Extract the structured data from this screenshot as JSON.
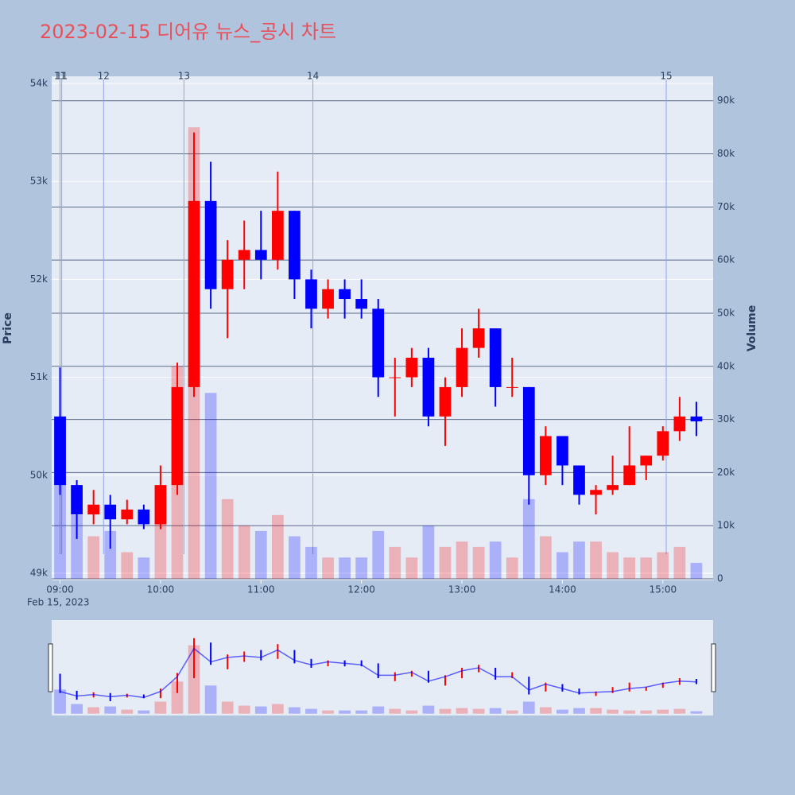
{
  "chart_data": {
    "type": "candlestick",
    "title": "2023-02-15 디어유 뉴스_공시 차트",
    "y_title": "Price",
    "y2_title": "Volume",
    "x_date_label": "Feb 15, 2023",
    "increasing_color": "#ff0000",
    "decreasing_color": "#0000ff",
    "x": [
      "09:00",
      "09:10",
      "09:20",
      "09:30",
      "09:40",
      "09:50",
      "10:00",
      "10:10",
      "10:20",
      "10:30",
      "10:40",
      "10:50",
      "11:00",
      "11:10",
      "11:20",
      "11:30",
      "11:40",
      "11:50",
      "12:00",
      "12:10",
      "12:20",
      "12:30",
      "12:40",
      "12:50",
      "13:00",
      "13:10",
      "13:20",
      "13:30",
      "13:40",
      "13:50",
      "14:00",
      "14:10",
      "14:20",
      "14:30",
      "14:40",
      "14:50",
      "15:00",
      "15:10",
      "15:20"
    ],
    "open": [
      50600,
      49900,
      49600,
      49700,
      49550,
      49650,
      49500,
      49900,
      50900,
      52800,
      51900,
      52200,
      52300,
      52200,
      52700,
      52000,
      51700,
      51900,
      51800,
      51700,
      51000,
      51000,
      51200,
      50600,
      50900,
      51300,
      51500,
      50900,
      50900,
      50000,
      50400,
      50100,
      49800,
      49850,
      49900,
      50100,
      50200,
      50450,
      50600
    ],
    "high": [
      51100,
      49950,
      49850,
      49800,
      49750,
      49700,
      50100,
      51150,
      53500,
      53200,
      52400,
      52600,
      52700,
      53100,
      52700,
      52100,
      52000,
      52000,
      52000,
      51800,
      51200,
      51300,
      51300,
      51000,
      51500,
      51700,
      51500,
      51200,
      50900,
      50500,
      50400,
      50100,
      49900,
      50200,
      50500,
      50200,
      50500,
      50800,
      50750
    ],
    "low": [
      49800,
      49350,
      49500,
      49250,
      49500,
      49450,
      49450,
      49800,
      50800,
      51700,
      51400,
      51900,
      52000,
      52100,
      51800,
      51500,
      51600,
      51600,
      51600,
      50800,
      50600,
      50900,
      50500,
      50300,
      50800,
      51200,
      50700,
      50800,
      49700,
      49900,
      49900,
      49700,
      49600,
      49800,
      49900,
      49950,
      50150,
      50350,
      50400
    ],
    "close": [
      49900,
      49600,
      49700,
      49550,
      49650,
      49500,
      49900,
      50900,
      52800,
      51900,
      52200,
      52300,
      52200,
      52700,
      52000,
      51700,
      51900,
      51800,
      51700,
      51000,
      51000,
      51200,
      50600,
      50900,
      51300,
      51500,
      50900,
      50900,
      50000,
      50400,
      50100,
      49800,
      49850,
      49900,
      50100,
      50200,
      50450,
      50600,
      50550
    ],
    "volume": [
      30000,
      12000,
      8000,
      9000,
      5000,
      4000,
      15000,
      40000,
      85000,
      35000,
      15000,
      10000,
      9000,
      12000,
      8000,
      6000,
      4000,
      4000,
      4000,
      9000,
      6000,
      4000,
      10000,
      6000,
      7000,
      6000,
      7000,
      4000,
      15000,
      8000,
      5000,
      7000,
      7000,
      5000,
      4000,
      4000,
      5000,
      6000,
      3000
    ],
    "xlim": [
      "08:55",
      "15:30"
    ],
    "xticks": [
      "09:00",
      "10:00",
      "11:00",
      "12:00",
      "13:00",
      "14:00",
      "15:00"
    ],
    "ylim": [
      48927,
      54073
    ],
    "yticks": [
      {
        "value": 49000,
        "label": "49k"
      },
      {
        "value": 50000,
        "label": "50k"
      },
      {
        "value": 51000,
        "label": "51k"
      },
      {
        "value": 52000,
        "label": "52k"
      },
      {
        "value": 53000,
        "label": "53k"
      },
      {
        "value": 54000,
        "label": "54k"
      }
    ],
    "y2lim": [
      -300,
      94600
    ],
    "y2ticks": [
      0,
      {
        "value": 10000,
        "label": "10k"
      },
      {
        "value": 20000,
        "label": "20k"
      },
      {
        "value": 30000,
        "label": "30k"
      },
      {
        "value": 40000,
        "label": "40k"
      },
      {
        "value": 50000,
        "label": "50k"
      },
      {
        "value": 60000,
        "label": "60k"
      },
      {
        "value": 70000,
        "label": "70k"
      },
      {
        "value": 80000,
        "label": "80k"
      },
      {
        "value": 90000,
        "label": "90k"
      }
    ],
    "annotations": [
      {
        "x": "09:00",
        "label": "11"
      },
      {
        "x": "09:01",
        "label": "11"
      },
      {
        "x": "09:26",
        "label": "12"
      },
      {
        "x": "10:14",
        "label": "13"
      },
      {
        "x": "11:31",
        "label": "14"
      },
      {
        "x": "15:02",
        "label": "15"
      }
    ]
  }
}
